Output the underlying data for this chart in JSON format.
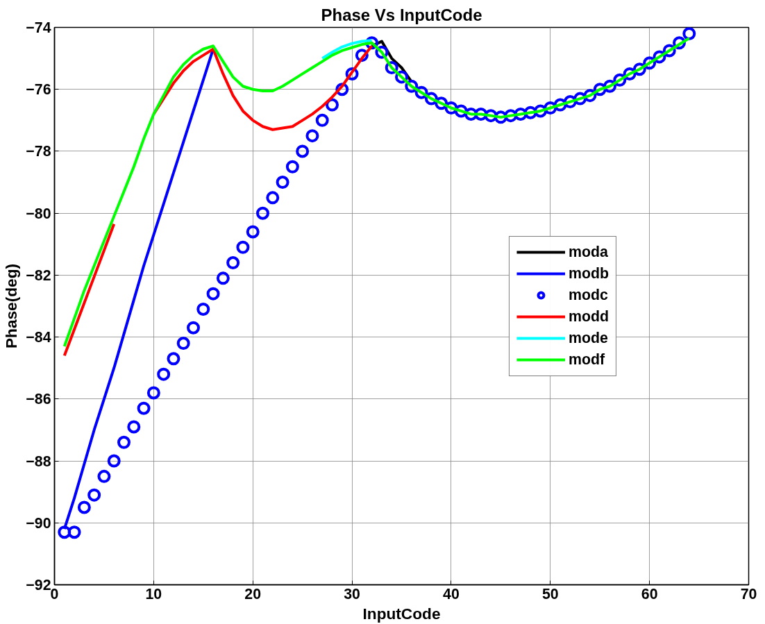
{
  "chart_data": {
    "type": "line",
    "title": "Phase Vs InputCode",
    "xlabel": "InputCode",
    "ylabel": "Phase(deg)",
    "xlim": [
      0,
      70
    ],
    "xticks": [
      0,
      10,
      20,
      30,
      40,
      50,
      60,
      70
    ],
    "ylim": [
      -92,
      -74
    ],
    "yticks": [
      -92,
      -90,
      -88,
      -86,
      -84,
      -82,
      -80,
      -78,
      -76,
      -74
    ],
    "grid": true,
    "legend": "right",
    "line_style": "solid",
    "x": [
      1,
      2,
      3,
      4,
      5,
      6,
      7,
      8,
      9,
      10,
      11,
      12,
      13,
      14,
      15,
      16,
      17,
      18,
      19,
      20,
      21,
      22,
      23,
      24,
      25,
      26,
      27,
      28,
      29,
      30,
      31,
      32,
      33,
      34,
      35,
      36,
      37,
      38,
      39,
      40,
      41,
      42,
      43,
      44,
      45,
      46,
      47,
      48,
      49,
      50,
      51,
      52,
      53,
      54,
      55,
      56,
      57,
      58,
      59,
      60,
      61,
      62,
      63,
      64
    ],
    "series": [
      {
        "name": "moda",
        "color": "#000000",
        "values": [
          null,
          null,
          null,
          null,
          null,
          null,
          null,
          null,
          null,
          null,
          null,
          null,
          null,
          null,
          null,
          null,
          null,
          null,
          null,
          null,
          null,
          null,
          null,
          null,
          null,
          null,
          null,
          null,
          null,
          null,
          null,
          -74.6,
          -74.45,
          -75.0,
          -75.3,
          -75.75,
          null,
          null,
          null,
          null,
          null,
          null,
          null,
          null,
          null,
          null,
          null,
          null,
          null,
          null,
          null,
          null,
          null,
          null,
          null,
          null,
          null,
          null,
          null,
          null,
          null,
          null,
          null,
          null
        ]
      },
      {
        "name": "modb",
        "color": "#0000ff",
        "values": [
          -90.2,
          -89.2,
          -88.1,
          -87.0,
          -86.0,
          -85.0,
          -83.9,
          -82.8,
          -81.7,
          -80.7,
          -79.7,
          -78.7,
          -77.7,
          -76.7,
          -75.7,
          -74.7,
          null,
          null,
          null,
          null,
          null,
          null,
          null,
          null,
          null,
          null,
          null,
          null,
          null,
          null,
          null,
          null,
          null,
          null,
          null,
          null,
          null,
          null,
          null,
          null,
          null,
          null,
          null,
          null,
          null,
          null,
          null,
          null,
          null,
          null,
          null,
          null,
          null,
          null,
          null,
          null,
          null,
          null,
          null,
          null,
          null,
          null,
          null,
          null
        ]
      },
      {
        "name": "modc",
        "color": "#0000ff",
        "type": "scatter",
        "marker": "circle",
        "values": [
          -90.3,
          -90.3,
          -89.5,
          -89.1,
          -88.5,
          -88.0,
          -87.4,
          -86.9,
          -86.3,
          -85.8,
          -85.2,
          -84.7,
          -84.2,
          -83.7,
          -83.1,
          -82.6,
          -82.1,
          -81.6,
          -81.1,
          -80.6,
          -80.0,
          -79.5,
          -79.0,
          -78.5,
          -78.0,
          -77.5,
          -77.0,
          -76.5,
          -76.0,
          -75.5,
          -74.9,
          -74.5,
          -74.8,
          -75.3,
          -75.6,
          -75.9,
          -76.1,
          -76.3,
          -76.45,
          -76.6,
          -76.7,
          -76.8,
          -76.8,
          -76.85,
          -76.9,
          -76.85,
          -76.8,
          -76.75,
          -76.7,
          -76.6,
          -76.5,
          -76.4,
          -76.3,
          -76.2,
          -76.0,
          -75.9,
          -75.7,
          -75.5,
          -75.35,
          -75.15,
          -74.95,
          -74.75,
          -74.5,
          -74.2
        ]
      },
      {
        "name": "modd",
        "color": "#ff0000",
        "values": [
          -84.6,
          -83.75,
          -82.9,
          -82.05,
          -81.2,
          -80.35,
          null,
          null,
          null,
          -76.8,
          -76.3,
          -75.8,
          -75.4,
          -75.1,
          -74.9,
          -74.7,
          -75.5,
          -76.2,
          -76.7,
          -77.0,
          -77.2,
          -77.3,
          -77.25,
          -77.2,
          -77.0,
          -76.8,
          -76.55,
          -76.25,
          -75.9,
          -75.45,
          -75.0,
          -74.6,
          null,
          null,
          null,
          null,
          null,
          null,
          null,
          null,
          null,
          null,
          null,
          null,
          null,
          null,
          null,
          null,
          null,
          null,
          null,
          null,
          null,
          null,
          null,
          null,
          null,
          null,
          null,
          null,
          null,
          null,
          null,
          null
        ]
      },
      {
        "name": "mode",
        "color": "#00ffff",
        "values": [
          null,
          null,
          null,
          null,
          null,
          null,
          null,
          null,
          null,
          null,
          null,
          null,
          null,
          null,
          null,
          null,
          null,
          null,
          null,
          null,
          null,
          null,
          null,
          null,
          null,
          null,
          -75.0,
          -74.8,
          -74.63,
          -74.52,
          -74.45,
          -74.42,
          null,
          null,
          null,
          null,
          null,
          null,
          null,
          null,
          null,
          null,
          null,
          null,
          null,
          null,
          null,
          null,
          null,
          null,
          null,
          null,
          null,
          null,
          null,
          null,
          null,
          null,
          null,
          null,
          null,
          null,
          null,
          null
        ]
      },
      {
        "name": "modf",
        "color": "#00ff00",
        "values": [
          -84.3,
          -83.4,
          -82.5,
          -81.7,
          -80.9,
          -80.1,
          -79.3,
          -78.5,
          -77.6,
          -76.8,
          -76.2,
          -75.6,
          -75.2,
          -74.9,
          -74.7,
          -74.6,
          -75.1,
          -75.6,
          -75.9,
          -76.0,
          -76.05,
          -76.05,
          -75.9,
          -75.7,
          -75.5,
          -75.3,
          -75.1,
          -74.9,
          -74.75,
          -74.65,
          -74.55,
          -74.5,
          -74.8,
          -75.3,
          -75.6,
          -75.9,
          -76.1,
          -76.3,
          -76.45,
          -76.6,
          -76.7,
          -76.8,
          -76.8,
          -76.85,
          -76.9,
          -76.85,
          -76.8,
          -76.75,
          -76.7,
          -76.6,
          -76.5,
          -76.4,
          -76.3,
          -76.2,
          -76.0,
          -75.9,
          -75.7,
          -75.5,
          -75.35,
          -75.15,
          -74.95,
          -74.75,
          -74.55,
          -74.35
        ]
      }
    ]
  }
}
